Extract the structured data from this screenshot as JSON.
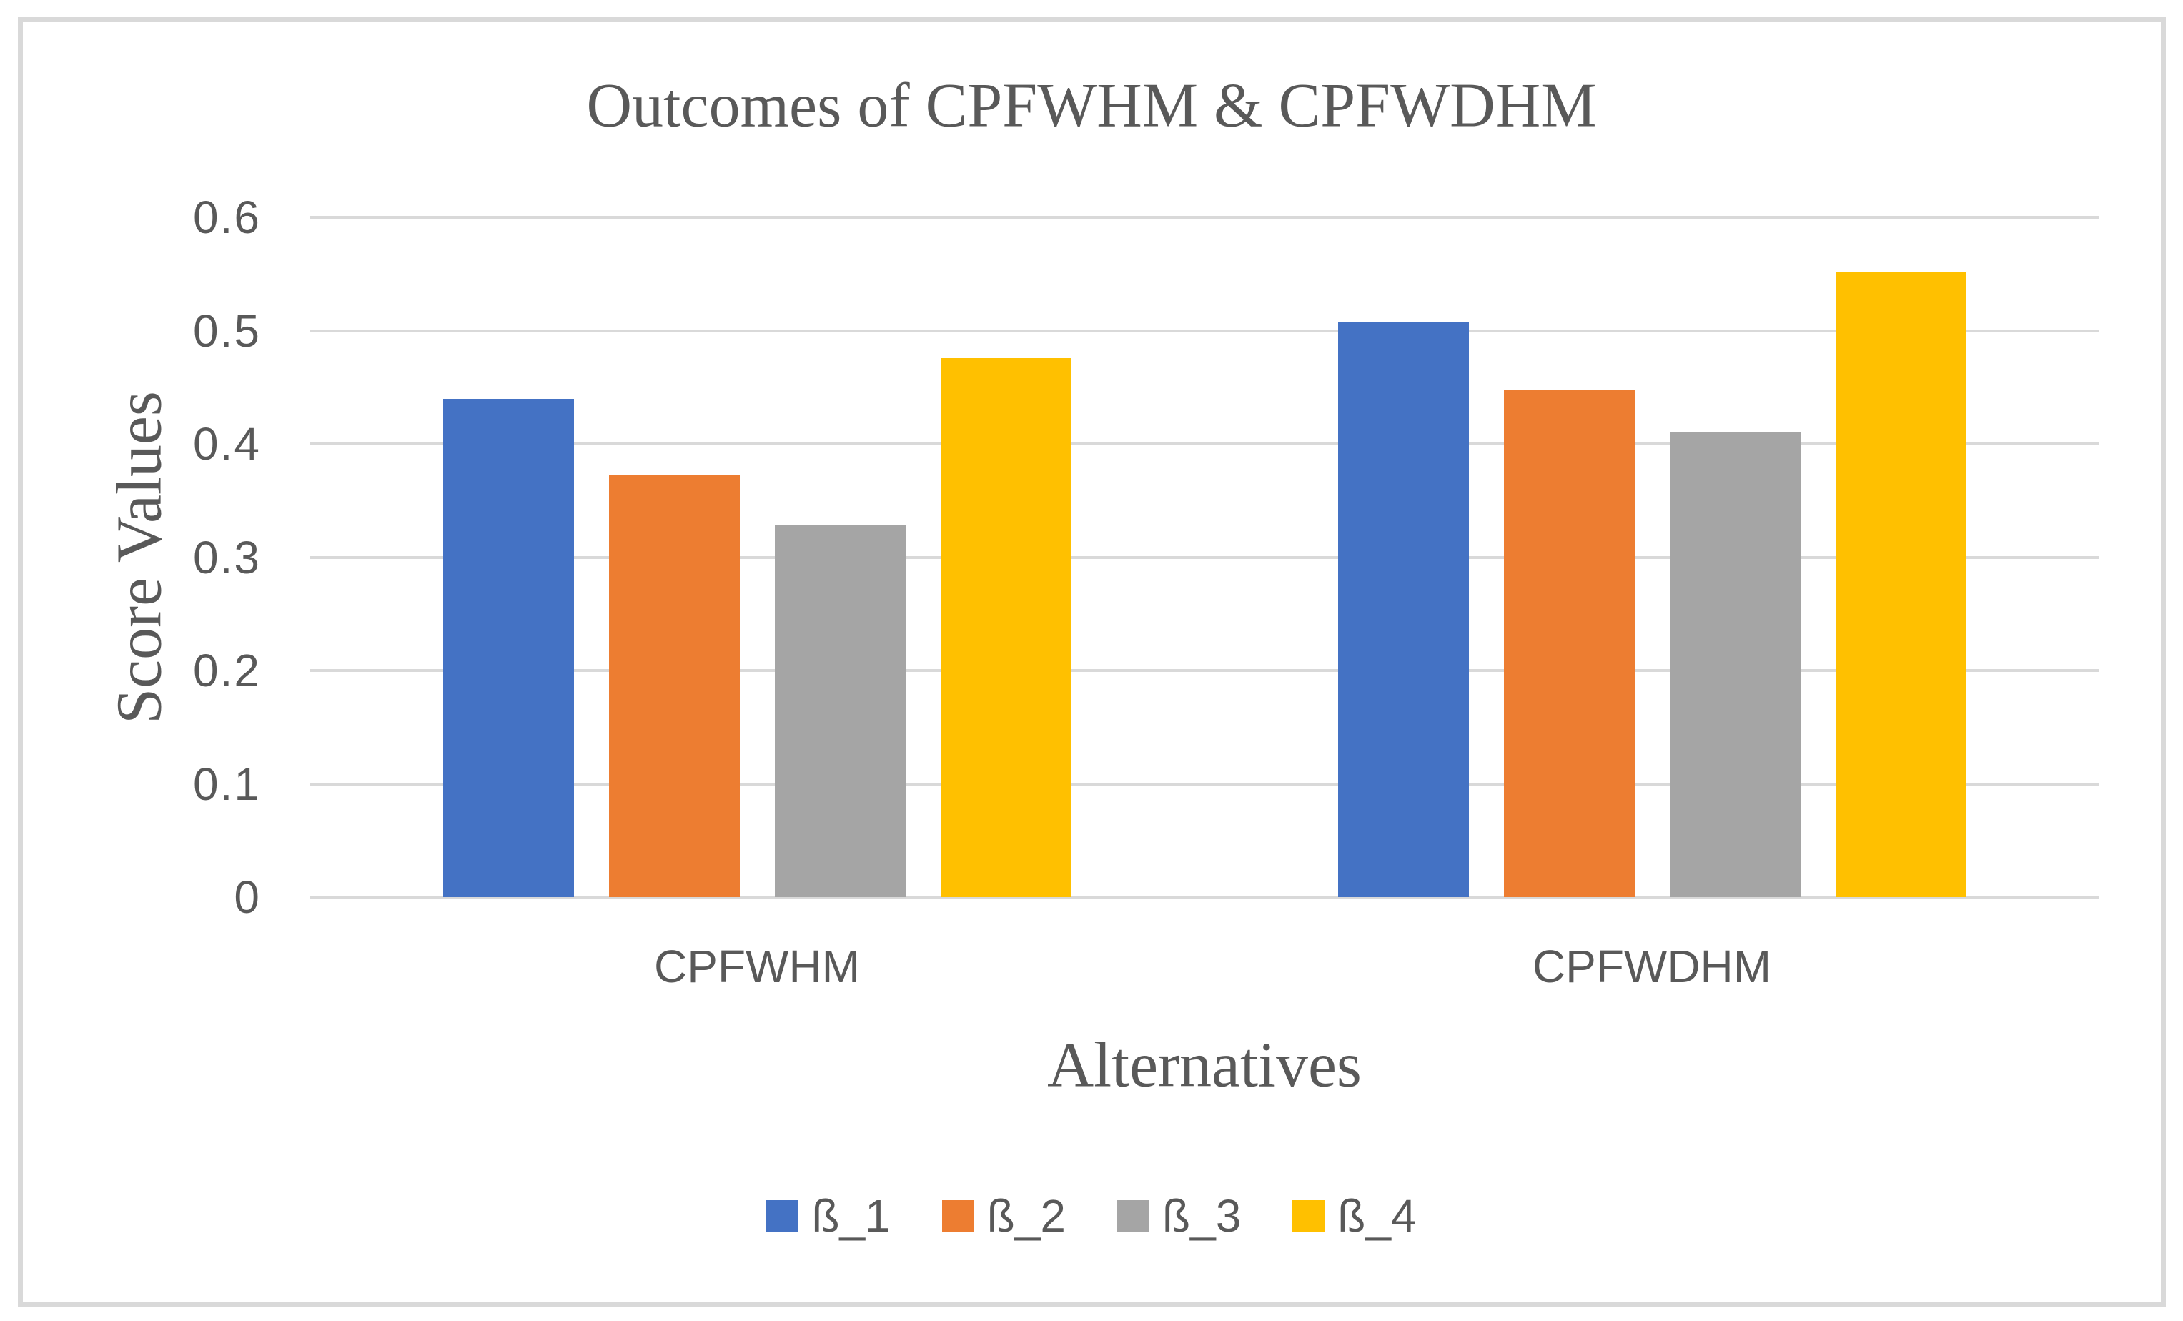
{
  "chart_data": {
    "type": "bar",
    "title": "Outcomes of CPFWHM & CPFWDHM",
    "xlabel": "Alternatives",
    "ylabel": "Score Values",
    "categories": [
      "CPFWHM",
      "CPFWDHM"
    ],
    "series": [
      {
        "name": "ß_1",
        "color": "#4472C4",
        "values": [
          0.44,
          0.507
        ]
      },
      {
        "name": "ß_2",
        "color": "#ED7D31",
        "values": [
          0.372,
          0.448
        ]
      },
      {
        "name": "ß_3",
        "color": "#A5A5A5",
        "values": [
          0.329,
          0.411
        ]
      },
      {
        "name": "ß_4",
        "color": "#FFC000",
        "values": [
          0.476,
          0.552
        ]
      }
    ],
    "ylim": [
      0,
      0.6
    ],
    "yticks": [
      "0",
      "0.1",
      "0.2",
      "0.3",
      "0.4",
      "0.5",
      "0.6"
    ],
    "grid": true,
    "legend_position": "bottom"
  },
  "colors": {
    "grid": "#D9D9D9",
    "axis": "#D9D9D9",
    "border": "#D9D9D9",
    "text": "#595959"
  }
}
